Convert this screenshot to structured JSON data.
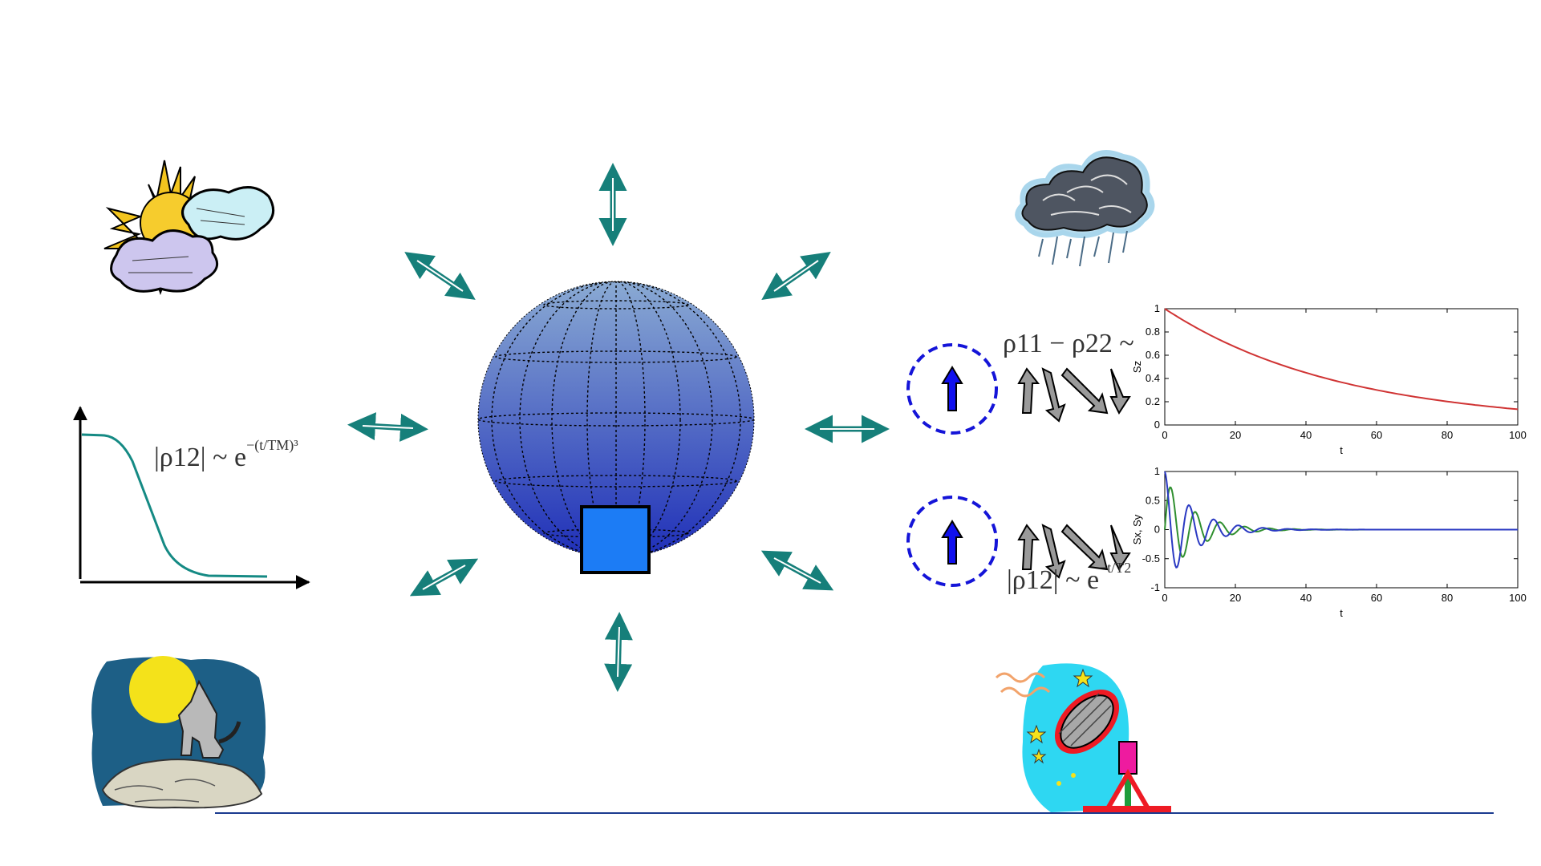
{
  "colors": {
    "arrow": "#167f7a",
    "sphere_top": "#8aaad3",
    "sphere_bottom": "#1f2fb8",
    "square": "#1c7cf5",
    "spin_circle": "#1414d8",
    "spin_arrow": "#1010ee",
    "decay_curve": "#158a84",
    "sz_curve": "#d03434",
    "sx_curve": "#2a39c2",
    "sy_curve": "#2f8f2f",
    "bottom_line": "#1a3b8f"
  },
  "icons": {
    "sunny_cloud": "sun-behind-clouds-icon",
    "rain_cloud": "rain-cloud-icon",
    "moon_coyote": "moon-coyote-icon",
    "radio_telescope": "radio-dish-icon"
  },
  "equations": {
    "left_decay": {
      "lhs": "|ρ12| ~ e",
      "exp": "−(t/TM)³"
    },
    "spin_population": {
      "text": "ρ11 − ρ22 ~ "
    },
    "spin_coherence": {
      "lhs": "|ρ12| ~ e",
      "exp": "−t/T2"
    }
  },
  "chart_data": [
    {
      "type": "line",
      "title": "",
      "xlabel": "t",
      "ylabel": "Sz",
      "xlim": [
        0,
        100
      ],
      "ylim": [
        0,
        1
      ],
      "xticks": [
        0,
        20,
        40,
        60,
        80,
        100
      ],
      "yticks": [
        0,
        0.2,
        0.4,
        0.6,
        0.8,
        1
      ],
      "series": [
        {
          "x": [
            0,
            10,
            20,
            30,
            40,
            50,
            60,
            70,
            80,
            90,
            100
          ],
          "y": [
            1.0,
            0.82,
            0.67,
            0.55,
            0.45,
            0.37,
            0.3,
            0.25,
            0.2,
            0.165,
            0.135
          ]
        }
      ]
    },
    {
      "type": "line",
      "title": "",
      "xlabel": "t",
      "ylabel": "Sx, Sy",
      "xlim": [
        0,
        100
      ],
      "ylim": [
        -1,
        1
      ],
      "xticks": [
        0,
        20,
        40,
        60,
        80,
        100
      ],
      "yticks": [
        -1,
        -0.5,
        0,
        0.5,
        1
      ],
      "series": [
        {
          "y_formula": "cos(0.9 t) exp(-t/8)",
          "x_range": [
            0,
            100
          ]
        },
        {
          "y_formula": "sin(0.9 t) exp(-t/8)",
          "x_range": [
            0,
            100
          ]
        }
      ]
    }
  ]
}
